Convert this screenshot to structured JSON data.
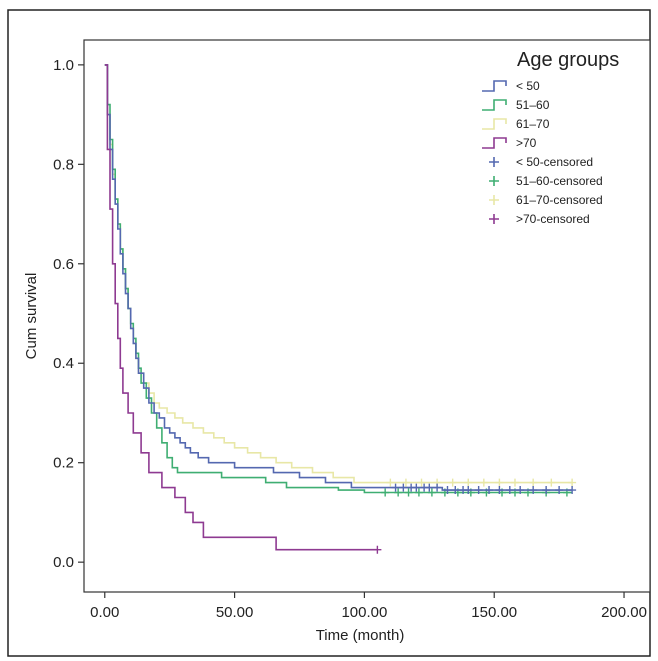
{
  "chart_data": {
    "type": "line",
    "step": true,
    "xlabel": "Time (month)",
    "ylabel": "Cum survival",
    "xlim": [
      -8,
      210
    ],
    "ylim": [
      -0.06,
      1.05
    ],
    "x_ticks": [
      0,
      50,
      100,
      150,
      200
    ],
    "x_tick_labels": [
      "0.00",
      "50.00",
      "100.00",
      "150.00",
      "200.00"
    ],
    "y_ticks": [
      0.0,
      0.2,
      0.4,
      0.6,
      0.8,
      1.0
    ],
    "y_tick_labels": [
      "0.0",
      "0.2",
      "0.4",
      "0.6",
      "0.8",
      "1.0"
    ],
    "grid": false,
    "legend": {
      "title": "Age groups",
      "position": "top-right",
      "entries": [
        "< 50",
        "51–60",
        "61–70",
        ">70",
        "< 50-censored",
        "51–60-censored",
        "61–70-censored",
        ">70-censored"
      ]
    },
    "series": [
      {
        "name": "< 50",
        "color": "#5468b0",
        "points": [
          [
            0,
            1.0
          ],
          [
            1,
            0.9
          ],
          [
            2,
            0.83
          ],
          [
            3,
            0.77
          ],
          [
            4,
            0.72
          ],
          [
            5,
            0.67
          ],
          [
            6,
            0.62
          ],
          [
            7,
            0.58
          ],
          [
            8,
            0.54
          ],
          [
            9,
            0.51
          ],
          [
            10,
            0.47
          ],
          [
            11,
            0.44
          ],
          [
            12,
            0.41
          ],
          [
            13,
            0.38
          ],
          [
            15,
            0.35
          ],
          [
            17,
            0.32
          ],
          [
            19,
            0.3
          ],
          [
            21,
            0.29
          ],
          [
            23,
            0.27
          ],
          [
            25,
            0.26
          ],
          [
            27,
            0.25
          ],
          [
            29,
            0.24
          ],
          [
            31,
            0.23
          ],
          [
            33,
            0.22
          ],
          [
            36,
            0.21
          ],
          [
            40,
            0.2
          ],
          [
            45,
            0.2
          ],
          [
            50,
            0.19
          ],
          [
            58,
            0.19
          ],
          [
            65,
            0.18
          ],
          [
            75,
            0.17
          ],
          [
            85,
            0.16
          ],
          [
            95,
            0.15
          ],
          [
            110,
            0.15
          ],
          [
            130,
            0.145
          ],
          [
            180,
            0.145
          ]
        ],
        "censored": [
          112,
          115,
          118,
          120,
          123,
          125,
          128,
          132,
          135,
          138,
          140,
          144,
          148,
          152,
          156,
          160,
          165,
          170,
          175,
          180
        ]
      },
      {
        "name": "51–60",
        "color": "#3fae72",
        "points": [
          [
            0,
            1.0
          ],
          [
            1,
            0.92
          ],
          [
            2,
            0.85
          ],
          [
            3,
            0.79
          ],
          [
            4,
            0.73
          ],
          [
            5,
            0.68
          ],
          [
            6,
            0.63
          ],
          [
            7,
            0.59
          ],
          [
            8,
            0.55
          ],
          [
            9,
            0.51
          ],
          [
            10,
            0.48
          ],
          [
            11,
            0.45
          ],
          [
            12,
            0.42
          ],
          [
            13,
            0.39
          ],
          [
            14,
            0.36
          ],
          [
            16,
            0.33
          ],
          [
            18,
            0.3
          ],
          [
            20,
            0.27
          ],
          [
            22,
            0.24
          ],
          [
            24,
            0.21
          ],
          [
            26,
            0.19
          ],
          [
            28,
            0.18
          ],
          [
            40,
            0.18
          ],
          [
            45,
            0.17
          ],
          [
            55,
            0.17
          ],
          [
            62,
            0.16
          ],
          [
            70,
            0.15
          ],
          [
            80,
            0.15
          ],
          [
            90,
            0.145
          ],
          [
            100,
            0.14
          ],
          [
            180,
            0.14
          ]
        ],
        "censored": [
          108,
          113,
          117,
          121,
          126,
          131,
          136,
          141,
          147,
          153,
          158,
          163,
          170,
          178
        ]
      },
      {
        "name": "61–70",
        "color": "#e8e7a6",
        "points": [
          [
            0,
            1.0
          ],
          [
            1,
            0.9
          ],
          [
            2,
            0.84
          ],
          [
            3,
            0.78
          ],
          [
            4,
            0.73
          ],
          [
            5,
            0.68
          ],
          [
            6,
            0.63
          ],
          [
            7,
            0.59
          ],
          [
            8,
            0.55
          ],
          [
            9,
            0.51
          ],
          [
            10,
            0.47
          ],
          [
            11,
            0.44
          ],
          [
            12,
            0.41
          ],
          [
            13,
            0.38
          ],
          [
            15,
            0.36
          ],
          [
            17,
            0.34
          ],
          [
            19,
            0.32
          ],
          [
            21,
            0.31
          ],
          [
            24,
            0.3
          ],
          [
            27,
            0.29
          ],
          [
            30,
            0.28
          ],
          [
            34,
            0.27
          ],
          [
            38,
            0.26
          ],
          [
            42,
            0.25
          ],
          [
            46,
            0.24
          ],
          [
            50,
            0.23
          ],
          [
            55,
            0.22
          ],
          [
            60,
            0.21
          ],
          [
            66,
            0.2
          ],
          [
            72,
            0.19
          ],
          [
            80,
            0.18
          ],
          [
            88,
            0.17
          ],
          [
            96,
            0.16
          ],
          [
            180,
            0.16
          ]
        ],
        "censored": [
          110,
          116,
          122,
          128,
          134,
          140,
          146,
          152,
          158,
          165,
          172,
          180
        ]
      },
      {
        "name": ">70",
        "color": "#8e3a91",
        "points": [
          [
            0,
            1.0
          ],
          [
            1,
            0.83
          ],
          [
            2,
            0.71
          ],
          [
            3,
            0.6
          ],
          [
            4,
            0.52
          ],
          [
            5,
            0.45
          ],
          [
            6,
            0.39
          ],
          [
            7,
            0.34
          ],
          [
            9,
            0.3
          ],
          [
            11,
            0.26
          ],
          [
            14,
            0.22
          ],
          [
            17,
            0.18
          ],
          [
            22,
            0.15
          ],
          [
            27,
            0.13
          ],
          [
            31,
            0.1
          ],
          [
            34,
            0.08
          ],
          [
            38,
            0.05
          ],
          [
            52,
            0.05
          ],
          [
            66,
            0.025
          ],
          [
            105,
            0.025
          ]
        ],
        "censored": [
          105
        ]
      }
    ]
  }
}
